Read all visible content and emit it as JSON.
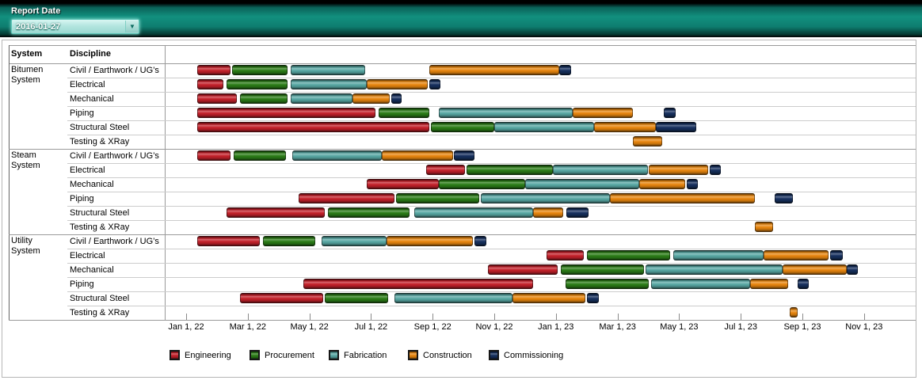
{
  "topbar": {
    "report_date_label": "Report Date",
    "report_date_value": "2016-01-27",
    "dropdown_arrow": "▼",
    "banner_color": "#12907f"
  },
  "table": {
    "system_header": "System",
    "discipline_header": "Discipline"
  },
  "chart_data": {
    "type": "gantt",
    "title": "",
    "time_axis": {
      "origin": "Jan 1, 2022",
      "unit": "months",
      "tick_step_months": 2,
      "tick_labels": [
        "Jan 1, 22",
        "Mar 1, 22",
        "May 1, 22",
        "Jul 1, 22",
        "Sep 1, 22",
        "Nov 1, 22",
        "Jan 1, 23",
        "Mar 1, 23",
        "May 1, 23",
        "Jul 1, 23",
        "Sep 1, 23",
        "Nov 1, 23"
      ]
    },
    "phases": [
      {
        "name": "Engineering",
        "color": "#c4202a"
      },
      {
        "name": "Procurement",
        "color": "#2b7d17"
      },
      {
        "name": "Fabrication",
        "color": "#58a8a4"
      },
      {
        "name": "Construction",
        "color": "#e8860e"
      },
      {
        "name": "Commissioning",
        "color": "#16305e"
      }
    ],
    "systems": [
      {
        "name": "Bitumen System",
        "rows": [
          {
            "discipline": "Civil / Earthwork / UG’s",
            "segments": [
              {
                "phase": "Engineering",
                "start": 0.35,
                "end": 1.45
              },
              {
                "phase": "Procurement",
                "start": 1.5,
                "end": 3.3
              },
              {
                "phase": "Fabrication",
                "start": 3.4,
                "end": 5.8
              },
              {
                "phase": "Construction",
                "start": 7.9,
                "end": 12.1
              },
              {
                "phase": "Commissioning",
                "start": 12.1,
                "end": 12.5
              }
            ]
          },
          {
            "discipline": "Electrical",
            "segments": [
              {
                "phase": "Engineering",
                "start": 0.35,
                "end": 1.2
              },
              {
                "phase": "Procurement",
                "start": 1.3,
                "end": 3.3
              },
              {
                "phase": "Fabrication",
                "start": 3.4,
                "end": 5.85
              },
              {
                "phase": "Construction",
                "start": 5.85,
                "end": 7.85
              },
              {
                "phase": "Commissioning",
                "start": 7.9,
                "end": 8.25
              }
            ]
          },
          {
            "discipline": "Mechanical",
            "segments": [
              {
                "phase": "Engineering",
                "start": 0.35,
                "end": 1.65
              },
              {
                "phase": "Procurement",
                "start": 1.75,
                "end": 3.3
              },
              {
                "phase": "Fabrication",
                "start": 3.4,
                "end": 5.4
              },
              {
                "phase": "Construction",
                "start": 5.4,
                "end": 6.6
              },
              {
                "phase": "Commissioning",
                "start": 6.65,
                "end": 7.0
              }
            ]
          },
          {
            "discipline": "Piping",
            "segments": [
              {
                "phase": "Engineering",
                "start": 0.35,
                "end": 6.15
              },
              {
                "phase": "Procurement",
                "start": 6.25,
                "end": 7.9
              },
              {
                "phase": "Fabrication",
                "start": 8.2,
                "end": 12.55
              },
              {
                "phase": "Construction",
                "start": 12.55,
                "end": 14.5
              },
              {
                "phase": "Commissioning",
                "start": 15.5,
                "end": 15.9
              }
            ]
          },
          {
            "discipline": "Structural Steel",
            "segments": [
              {
                "phase": "Engineering",
                "start": 0.35,
                "end": 7.9
              },
              {
                "phase": "Procurement",
                "start": 7.95,
                "end": 10.0
              },
              {
                "phase": "Fabrication",
                "start": 10.0,
                "end": 13.25
              },
              {
                "phase": "Construction",
                "start": 13.25,
                "end": 15.25
              },
              {
                "phase": "Commissioning",
                "start": 15.25,
                "end": 16.55
              }
            ]
          },
          {
            "discipline": "Testing & XRay",
            "segments": [
              {
                "phase": "Construction",
                "start": 14.5,
                "end": 15.45
              }
            ]
          }
        ]
      },
      {
        "name": "Steam System",
        "rows": [
          {
            "discipline": "Civil / Earthwork / UG’s",
            "segments": [
              {
                "phase": "Engineering",
                "start": 0.35,
                "end": 1.45
              },
              {
                "phase": "Procurement",
                "start": 1.55,
                "end": 3.25
              },
              {
                "phase": "Fabrication",
                "start": 3.45,
                "end": 6.35
              },
              {
                "phase": "Construction",
                "start": 6.35,
                "end": 8.65
              },
              {
                "phase": "Commissioning",
                "start": 8.7,
                "end": 9.35
              }
            ]
          },
          {
            "discipline": "Electrical",
            "segments": [
              {
                "phase": "Engineering",
                "start": 7.8,
                "end": 9.05
              },
              {
                "phase": "Procurement",
                "start": 9.1,
                "end": 11.9
              },
              {
                "phase": "Fabrication",
                "start": 11.9,
                "end": 15.0
              },
              {
                "phase": "Construction",
                "start": 15.0,
                "end": 16.95
              },
              {
                "phase": "Commissioning",
                "start": 17.0,
                "end": 17.35
              }
            ]
          },
          {
            "discipline": "Mechanical",
            "segments": [
              {
                "phase": "Engineering",
                "start": 5.85,
                "end": 8.2
              },
              {
                "phase": "Procurement",
                "start": 8.2,
                "end": 11.0
              },
              {
                "phase": "Fabrication",
                "start": 11.0,
                "end": 14.7
              },
              {
                "phase": "Construction",
                "start": 14.7,
                "end": 16.2
              },
              {
                "phase": "Commissioning",
                "start": 16.25,
                "end": 16.6
              }
            ]
          },
          {
            "discipline": "Piping",
            "segments": [
              {
                "phase": "Engineering",
                "start": 3.65,
                "end": 6.75
              },
              {
                "phase": "Procurement",
                "start": 6.8,
                "end": 9.5
              },
              {
                "phase": "Fabrication",
                "start": 9.55,
                "end": 13.75
              },
              {
                "phase": "Construction",
                "start": 13.75,
                "end": 18.45
              },
              {
                "phase": "Commissioning",
                "start": 19.1,
                "end": 19.7
              }
            ]
          },
          {
            "discipline": "Structural Steel",
            "segments": [
              {
                "phase": "Engineering",
                "start": 1.3,
                "end": 4.5
              },
              {
                "phase": "Procurement",
                "start": 4.6,
                "end": 7.25
              },
              {
                "phase": "Fabrication",
                "start": 7.4,
                "end": 11.25
              },
              {
                "phase": "Construction",
                "start": 11.25,
                "end": 12.25
              },
              {
                "phase": "Commissioning",
                "start": 12.35,
                "end": 13.05
              }
            ]
          },
          {
            "discipline": "Testing & XRay",
            "segments": [
              {
                "phase": "Construction",
                "start": 18.45,
                "end": 19.05
              }
            ]
          }
        ]
      },
      {
        "name": "Utility System",
        "rows": [
          {
            "discipline": "Civil / Earthwork / UG’s",
            "segments": [
              {
                "phase": "Engineering",
                "start": 0.35,
                "end": 2.4
              },
              {
                "phase": "Procurement",
                "start": 2.5,
                "end": 4.2
              },
              {
                "phase": "Fabrication",
                "start": 4.4,
                "end": 6.5
              },
              {
                "phase": "Construction",
                "start": 6.5,
                "end": 9.3
              },
              {
                "phase": "Commissioning",
                "start": 9.35,
                "end": 9.75
              }
            ]
          },
          {
            "discipline": "Electrical",
            "segments": [
              {
                "phase": "Engineering",
                "start": 11.7,
                "end": 12.9
              },
              {
                "phase": "Procurement",
                "start": 13.0,
                "end": 15.7
              },
              {
                "phase": "Fabrication",
                "start": 15.8,
                "end": 18.75
              },
              {
                "phase": "Construction",
                "start": 18.75,
                "end": 20.85
              },
              {
                "phase": "Commissioning",
                "start": 20.9,
                "end": 21.3
              }
            ]
          },
          {
            "discipline": "Mechanical",
            "segments": [
              {
                "phase": "Engineering",
                "start": 9.8,
                "end": 12.05
              },
              {
                "phase": "Procurement",
                "start": 12.15,
                "end": 14.85
              },
              {
                "phase": "Fabrication",
                "start": 14.9,
                "end": 19.35
              },
              {
                "phase": "Construction",
                "start": 19.35,
                "end": 21.45
              },
              {
                "phase": "Commissioning",
                "start": 21.45,
                "end": 21.8
              }
            ]
          },
          {
            "discipline": "Piping",
            "segments": [
              {
                "phase": "Engineering",
                "start": 3.8,
                "end": 11.25
              },
              {
                "phase": "Procurement",
                "start": 12.3,
                "end": 15.0
              },
              {
                "phase": "Fabrication",
                "start": 15.1,
                "end": 18.3
              },
              {
                "phase": "Construction",
                "start": 18.3,
                "end": 19.55
              },
              {
                "phase": "Commissioning",
                "start": 19.85,
                "end": 20.2
              }
            ]
          },
          {
            "discipline": "Structural Steel",
            "segments": [
              {
                "phase": "Engineering",
                "start": 1.75,
                "end": 4.45
              },
              {
                "phase": "Procurement",
                "start": 4.5,
                "end": 6.55
              },
              {
                "phase": "Fabrication",
                "start": 6.75,
                "end": 10.6
              },
              {
                "phase": "Construction",
                "start": 10.6,
                "end": 12.95
              },
              {
                "phase": "Commissioning",
                "start": 13.0,
                "end": 13.4
              }
            ]
          },
          {
            "discipline": "Testing & XRay",
            "segments": [
              {
                "phase": "Construction",
                "start": 19.6,
                "end": 19.85
              }
            ]
          }
        ]
      }
    ],
    "legend_position": "bottom"
  }
}
